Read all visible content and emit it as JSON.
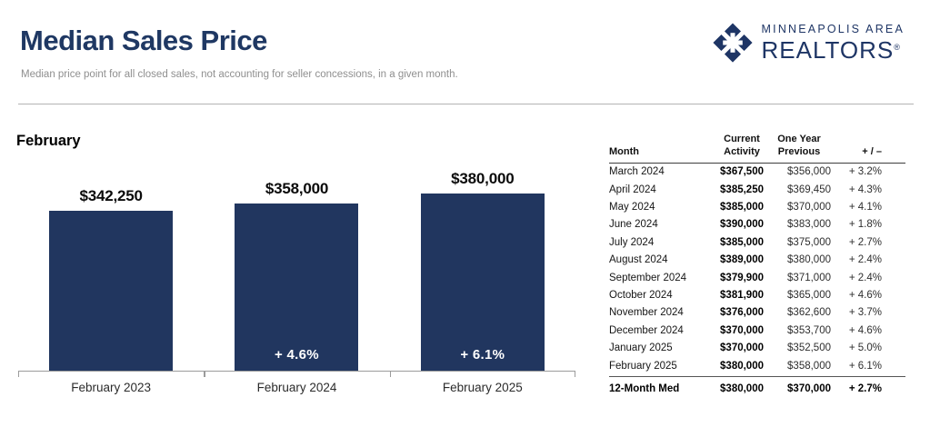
{
  "colors": {
    "navy": "#21365f",
    "title_navy": "#1f3863",
    "logo_navy": "#1e3565",
    "subtitle_gray": "#8f8f8f",
    "change_white": "#ffffff"
  },
  "header": {
    "title": "Median Sales Price",
    "subtitle": "Median price point for all closed sales, not accounting for seller concessions, in a given month.",
    "logo": {
      "line1": "MINNEAPOLIS AREA",
      "line2": "REALTORS",
      "registered": "®"
    }
  },
  "chart": {
    "heading": "February"
  },
  "chart_data": {
    "type": "bar",
    "title": "Median Sales Price — February",
    "categories": [
      "February 2023",
      "February 2024",
      "February 2025"
    ],
    "values": [
      342250,
      358000,
      380000
    ],
    "value_labels": [
      "$342,250",
      "$358,000",
      "$380,000"
    ],
    "change_labels": [
      null,
      "+ 4.6%",
      "+ 6.1%"
    ],
    "xlabel": "",
    "ylabel": "",
    "ylim": [
      0,
      380000
    ],
    "grid": false,
    "legend": false,
    "bar_color": "#21365f"
  },
  "table": {
    "columns": [
      "Month",
      "Current\nActivity",
      "One Year\nPrevious",
      "+ / –"
    ],
    "rows": [
      {
        "month": "March 2024",
        "current": "$367,500",
        "previous": "$356,000",
        "change": "+ 3.2%"
      },
      {
        "month": "April 2024",
        "current": "$385,250",
        "previous": "$369,450",
        "change": "+ 4.3%"
      },
      {
        "month": "May 2024",
        "current": "$385,000",
        "previous": "$370,000",
        "change": "+ 4.1%"
      },
      {
        "month": "June 2024",
        "current": "$390,000",
        "previous": "$383,000",
        "change": "+ 1.8%"
      },
      {
        "month": "July 2024",
        "current": "$385,000",
        "previous": "$375,000",
        "change": "+ 2.7%"
      },
      {
        "month": "August 2024",
        "current": "$389,000",
        "previous": "$380,000",
        "change": "+ 2.4%"
      },
      {
        "month": "September 2024",
        "current": "$379,900",
        "previous": "$371,000",
        "change": "+ 2.4%"
      },
      {
        "month": "October 2024",
        "current": "$381,900",
        "previous": "$365,000",
        "change": "+ 4.6%"
      },
      {
        "month": "November 2024",
        "current": "$376,000",
        "previous": "$362,600",
        "change": "+ 3.7%"
      },
      {
        "month": "December 2024",
        "current": "$370,000",
        "previous": "$353,700",
        "change": "+ 4.6%"
      },
      {
        "month": "January 2025",
        "current": "$370,000",
        "previous": "$352,500",
        "change": "+ 5.0%"
      },
      {
        "month": "February 2025",
        "current": "$380,000",
        "previous": "$358,000",
        "change": "+ 6.1%"
      }
    ],
    "footer": {
      "month": "12-Month Med",
      "current": "$380,000",
      "previous": "$370,000",
      "change": "+ 2.7%"
    }
  }
}
